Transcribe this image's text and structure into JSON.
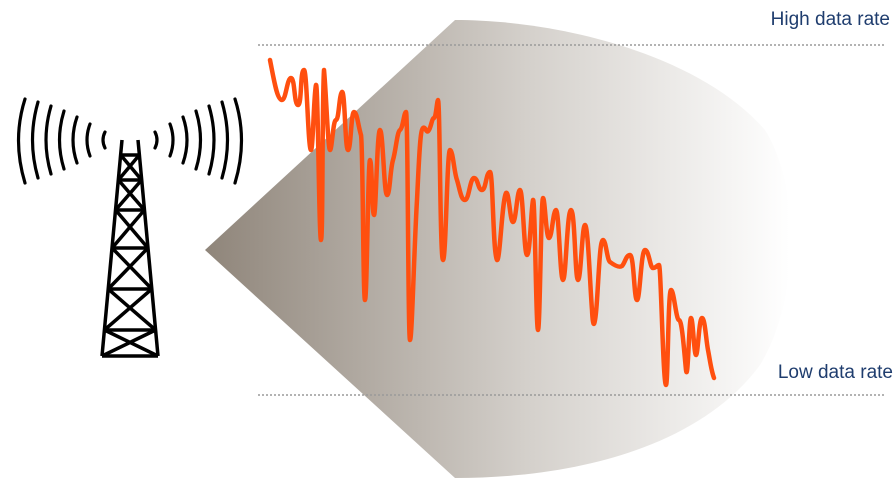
{
  "labels": {
    "high": "High data rate",
    "low": "Low data rate"
  },
  "colors": {
    "label_text": "#1f3d6e",
    "signal": "#ff4f0f",
    "beam_dark": "#8f857a",
    "beam_light": "#ffffff",
    "tower": "#000000",
    "reference_line": "#9a9a9a"
  },
  "icons": {
    "tower": "radio-tower-icon",
    "waves": "signal-waves-icon"
  }
}
